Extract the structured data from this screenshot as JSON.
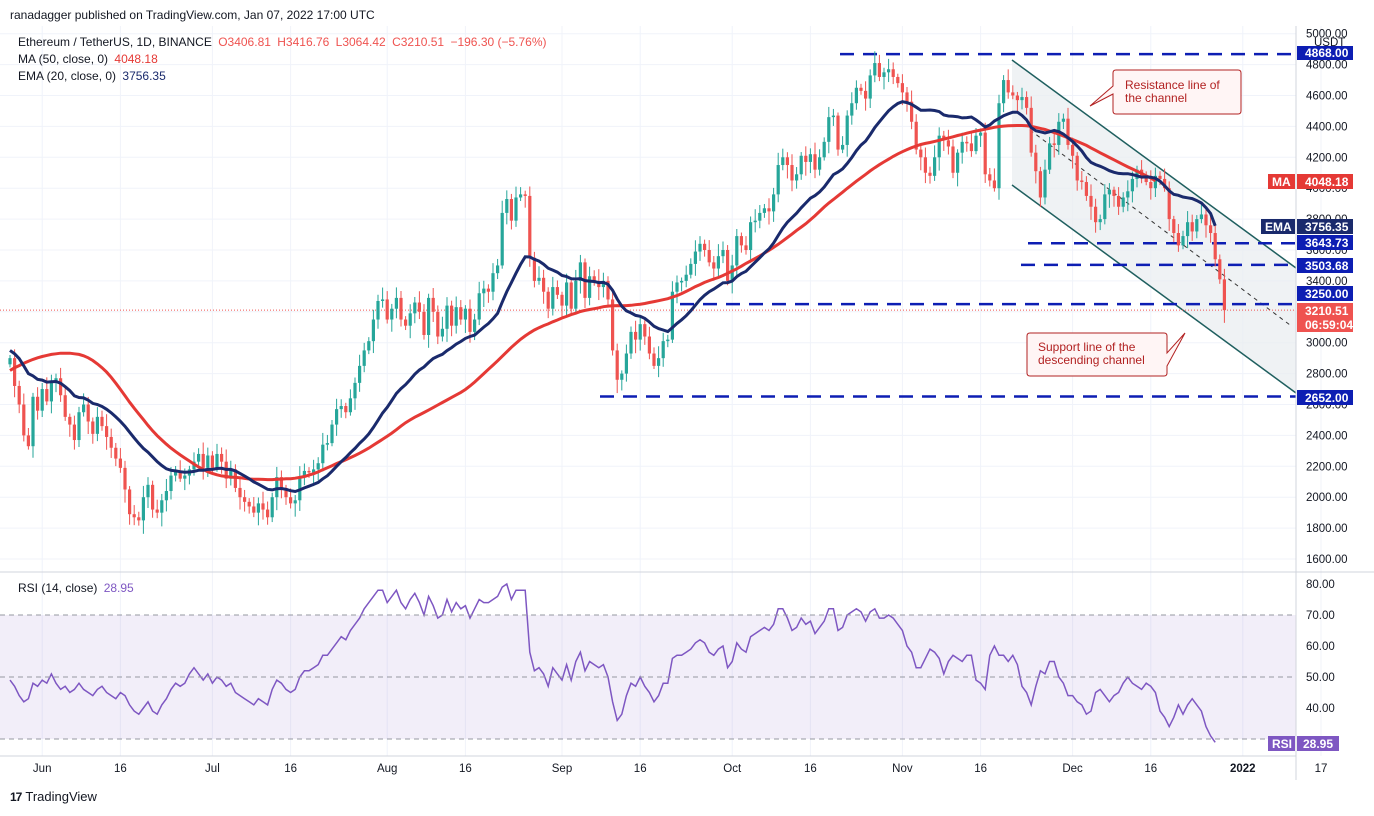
{
  "published": "ranadagger published on TradingView.com, Jan 07, 2022 17:00 UTC",
  "legend": {
    "symbol": "Ethereum / TetherUS, 1D, BINANCE",
    "ohlc": {
      "o": "O3406.81",
      "h": "H3416.76",
      "l": "L3064.42",
      "c": "C3210.51",
      "chg": "−196.30 (−5.76%)"
    },
    "ma_label": "MA (50, close, 0)",
    "ma_value": "4048.18",
    "ema_label": "EMA (20, close, 0)",
    "ema_value": "3756.35",
    "rsi_label": "RSI (14, close)",
    "rsi_value": "28.95"
  },
  "footer": {
    "brand": "TradingView"
  },
  "colors": {
    "up": "#26a69a",
    "down": "#ef5350",
    "ma": "#e53935",
    "ema": "#1a2a6c",
    "rsi": "#7e57c2",
    "level": "#0d1eb3",
    "channel": "#1f5f5f",
    "annotation": "#b22222"
  },
  "price_tags": {
    "currency": "USDT",
    "top": "4868.00",
    "ma": "4048.18",
    "ema": "3756.35",
    "lvl1": "3643.73",
    "lvl2": "3503.68",
    "lvl3": "3250.00",
    "last": "3210.51",
    "countdown": "06:59:04",
    "bottom": "2652.00",
    "ma_tag": "MA",
    "ema_tag": "EMA",
    "rsi_tag": "RSI"
  },
  "annotations": {
    "resistance_1": "Resistance line of",
    "resistance_2": "the channel",
    "support_1": "Support line of the",
    "support_2": "descending channel"
  },
  "chart_data": [
    {
      "type": "candlestick",
      "title": "Ethereum / TetherUS, 1D, BINANCE",
      "x_ticks": [
        "Jun",
        "16",
        "Jul",
        "16",
        "Aug",
        "16",
        "Sep",
        "16",
        "Oct",
        "16",
        "Nov",
        "16",
        "Dec",
        "16",
        "2022",
        "17"
      ],
      "y_ticks": [
        1600,
        1800,
        2000,
        2200,
        2400,
        2600,
        2800,
        3000,
        3200,
        3400,
        3600,
        3800,
        4000,
        4200,
        4400,
        4600,
        4800,
        5000
      ],
      "ylim": [
        1540,
        5040
      ],
      "ylabel": "USDT",
      "close": [
        2900,
        2720,
        2600,
        2400,
        2330,
        2650,
        2560,
        2700,
        2620,
        2740,
        2770,
        2660,
        2520,
        2470,
        2370,
        2550,
        2600,
        2490,
        2410,
        2520,
        2460,
        2390,
        2320,
        2250,
        2190,
        2050,
        1890,
        1870,
        1850,
        2000,
        2080,
        1920,
        1900,
        1980,
        2040,
        2140,
        2170,
        2120,
        2140,
        2180,
        2230,
        2280,
        2190,
        2270,
        2190,
        2280,
        2230,
        2120,
        2180,
        2060,
        2000,
        1970,
        1940,
        1900,
        1960,
        1920,
        1870,
        2000,
        2130,
        2060,
        2000,
        1960,
        1980,
        2130,
        2170,
        2160,
        2180,
        2220,
        2340,
        2350,
        2470,
        2570,
        2590,
        2550,
        2640,
        2740,
        2850,
        2950,
        3010,
        3150,
        3270,
        3280,
        3150,
        3220,
        3290,
        3150,
        3110,
        3190,
        3260,
        3200,
        3050,
        3290,
        3200,
        3040,
        3090,
        3240,
        3110,
        3230,
        3150,
        3220,
        3070,
        3150,
        3320,
        3350,
        3330,
        3450,
        3500,
        3840,
        3930,
        3790,
        3940,
        3960,
        3950,
        3550,
        3400,
        3420,
        3330,
        3220,
        3360,
        3310,
        3240,
        3390,
        3220,
        3400,
        3520,
        3290,
        3430,
        3400,
        3360,
        3400,
        3280,
        2950,
        2760,
        2800,
        2930,
        3070,
        3020,
        3120,
        3040,
        2930,
        2850,
        2900,
        3010,
        3020,
        3330,
        3390,
        3400,
        3440,
        3510,
        3590,
        3640,
        3600,
        3520,
        3480,
        3560,
        3600,
        3400,
        3500,
        3690,
        3630,
        3600,
        3780,
        3790,
        3840,
        3870,
        3850,
        3960,
        4150,
        4200,
        4150,
        4050,
        4090,
        4210,
        4170,
        4220,
        4120,
        4200,
        4300,
        4460,
        4470,
        4250,
        4280,
        4470,
        4550,
        4650,
        4630,
        4580,
        4730,
        4810,
        4720,
        4750,
        4770,
        4720,
        4680,
        4620,
        4560,
        4430,
        4250,
        4200,
        4100,
        4080,
        4200,
        4340,
        4310,
        4270,
        4100,
        4230,
        4300,
        4290,
        4240,
        4340,
        4360,
        4090,
        4050,
        4000,
        4550,
        4700,
        4620,
        4600,
        4570,
        4590,
        4520,
        4230,
        4110,
        3940,
        4120,
        4290,
        4280,
        4430,
        4450,
        4280,
        4210,
        4050,
        4040,
        3950,
        3880,
        3780,
        3800,
        3960,
        3990,
        3950,
        3880,
        3940,
        3980,
        4060,
        4120,
        4070,
        4040,
        4000,
        4080,
        4060,
        4000,
        3800,
        3710,
        3630,
        3690,
        3780,
        3720,
        3800,
        3830,
        3760,
        3710,
        3540,
        3410,
        3210.51
      ],
      "ma50": [
        2820,
        2838,
        2852,
        2867,
        2880,
        2892,
        2902,
        2911,
        2918,
        2924,
        2928,
        2932,
        2932,
        2932,
        2928,
        2924,
        2915,
        2902,
        2885,
        2863,
        2838,
        2810,
        2776,
        2738,
        2698,
        2656,
        2615,
        2576,
        2539,
        2502,
        2465,
        2430,
        2398,
        2370,
        2343,
        2318,
        2295,
        2274,
        2254,
        2234,
        2214,
        2196,
        2180,
        2165,
        2154,
        2145,
        2138,
        2134,
        2130,
        2128,
        2126,
        2122,
        2118,
        2116,
        2116,
        2115,
        2114,
        2114,
        2116,
        2117,
        2119,
        2120,
        2123,
        2128,
        2134,
        2143,
        2152,
        2164,
        2178,
        2191,
        2204,
        2218,
        2230,
        2242,
        2256,
        2270,
        2285,
        2301,
        2318,
        2337,
        2356,
        2375,
        2395,
        2415,
        2437,
        2460,
        2482,
        2500,
        2518,
        2533,
        2548,
        2564,
        2580,
        2597,
        2613,
        2629,
        2646,
        2662,
        2678,
        2697,
        2720,
        2745,
        2772,
        2800,
        2828,
        2855,
        2883,
        2912,
        2941,
        2970,
        2996,
        3022,
        3044,
        3064,
        3082,
        3097,
        3111,
        3122,
        3135,
        3147,
        3160,
        3170,
        3182,
        3191,
        3202,
        3209,
        3215,
        3220,
        3226,
        3233,
        3237,
        3239,
        3240,
        3239,
        3240,
        3242,
        3246,
        3249,
        3254,
        3260,
        3266,
        3272,
        3278,
        3285,
        3295,
        3305,
        3318,
        3332,
        3347,
        3363,
        3376,
        3390,
        3402,
        3412,
        3422,
        3435,
        3449,
        3464,
        3478,
        3495,
        3513,
        3529,
        3545,
        3562,
        3580,
        3598,
        3617,
        3637,
        3659,
        3681,
        3703,
        3727,
        3748,
        3770,
        3796,
        3822,
        3850,
        3878,
        3904,
        3927,
        3951,
        3974,
        3999,
        4022,
        4045,
        4067,
        4089,
        4112,
        4133,
        4152,
        4170,
        4188,
        4206,
        4222,
        4236,
        4250,
        4262,
        4273,
        4283,
        4290,
        4296,
        4303,
        4310,
        4318,
        4325,
        4333,
        4341,
        4348,
        4356,
        4363,
        4370,
        4376,
        4382,
        4388,
        4394,
        4399,
        4402,
        4404,
        4405,
        4406,
        4406,
        4404,
        4400,
        4394,
        4387,
        4380,
        4370,
        4360,
        4350,
        4338,
        4326,
        4315,
        4303,
        4290,
        4277,
        4261,
        4245,
        4229,
        4214,
        4199,
        4184,
        4168,
        4153,
        4138,
        4124,
        4110,
        4096,
        4080,
        4066,
        4048.18
      ],
      "ema20": [
        2950,
        2928,
        2897,
        2850,
        2800,
        2785,
        2763,
        2758,
        2745,
        2747,
        2749,
        2738,
        2715,
        2690,
        2656,
        2645,
        2643,
        2628,
        2607,
        2600,
        2587,
        2569,
        2546,
        2520,
        2491,
        2459,
        2421,
        2384,
        2348,
        2316,
        2291,
        2261,
        2230,
        2205,
        2184,
        2174,
        2170,
        2165,
        2162,
        2163,
        2167,
        2174,
        2175,
        2180,
        2180,
        2186,
        2187,
        2180,
        2180,
        2170,
        2154,
        2137,
        2119,
        2099,
        2084,
        2068,
        2051,
        2047,
        2055,
        2056,
        2051,
        2042,
        2037,
        2047,
        2060,
        2071,
        2083,
        2096,
        2119,
        2139,
        2168,
        2200,
        2230,
        2257,
        2288,
        2316,
        2349,
        2377,
        2410,
        2452,
        2498,
        2545,
        2582,
        2626,
        2672,
        2703,
        2729,
        2761,
        2796,
        2823,
        2843,
        2872,
        2898,
        2912,
        2925,
        2949,
        2968,
        2991,
        3008,
        3028,
        3040,
        3049,
        3075,
        3101,
        3124,
        3155,
        3190,
        3262,
        3331,
        3389,
        3450,
        3507,
        3556,
        3555,
        3540,
        3528,
        3508,
        3482,
        3470,
        3456,
        3435,
        3428,
        3414,
        3412,
        3415,
        3402,
        3399,
        3396,
        3389,
        3390,
        3378,
        3339,
        3283,
        3236,
        3206,
        3193,
        3177,
        3171,
        3157,
        3134,
        3107,
        3091,
        3082,
        3072,
        3098,
        3125,
        3148,
        3175,
        3207,
        3243,
        3279,
        3307,
        3330,
        3347,
        3367,
        3388,
        3389,
        3399,
        3427,
        3448,
        3462,
        3492,
        3521,
        3550,
        3581,
        3607,
        3645,
        3694,
        3741,
        3780,
        3809,
        3838,
        3873,
        3904,
        3935,
        3952,
        3976,
        4008,
        4048,
        4088,
        4104,
        4125,
        4160,
        4199,
        4243,
        4279,
        4305,
        4347,
        4393,
        4430,
        4466,
        4501,
        4527,
        4548,
        4560,
        4554,
        4543,
        4524,
        4505,
        4505,
        4506,
        4503,
        4496,
        4474,
        4467,
        4466,
        4463,
        4455,
        4457,
        4461,
        4442,
        4420,
        4396,
        4409,
        4435,
        4451,
        4469,
        4481,
        4492,
        4492,
        4471,
        4442,
        4393,
        4372,
        4365,
        4357,
        4365,
        4374,
        4366,
        4350,
        4326,
        4302,
        4273,
        4241,
        4198,
        4167,
        4153,
        4142,
        4129,
        4113,
        4103,
        4096,
        4094,
        4094,
        4088,
        4080,
        4072,
        4073,
        4071,
        4064,
        4045,
        4016,
        3983,
        3960,
        3954,
        3943,
        3938,
        3933,
        3920,
        3904,
        3874,
        3836,
        3756.35
      ]
    },
    {
      "type": "line",
      "title": "RSI (14, close)",
      "y_ticks": [
        40,
        50,
        60,
        70,
        80
      ],
      "ylim": [
        29,
        83
      ],
      "bands": [
        30,
        70
      ],
      "values": [
        49,
        47,
        44,
        42,
        43,
        48,
        47,
        49,
        48,
        51,
        48,
        46,
        47,
        45,
        46,
        48,
        46,
        45,
        44,
        46,
        47,
        45,
        44,
        43,
        45,
        44,
        41,
        39,
        38,
        40,
        42,
        39,
        38,
        41,
        43,
        46,
        48,
        47,
        48,
        51,
        53,
        51,
        49,
        51,
        48,
        50,
        49,
        47,
        48,
        45,
        44,
        43,
        42,
        41,
        43,
        42,
        41,
        46,
        49,
        48,
        46,
        45,
        46,
        50,
        52,
        52,
        53,
        54,
        57,
        57,
        59,
        61,
        63,
        62,
        65,
        67,
        69,
        72,
        74,
        76,
        78,
        78,
        74,
        76,
        78,
        74,
        72,
        75,
        77,
        74,
        70,
        76,
        73,
        69,
        70,
        75,
        71,
        74,
        72,
        73,
        69,
        72,
        75,
        74,
        74,
        75,
        76,
        79,
        80,
        75,
        78,
        78,
        78,
        58,
        52,
        53,
        51,
        47,
        53,
        51,
        49,
        54,
        49,
        55,
        58,
        52,
        55,
        54,
        53,
        54,
        50,
        42,
        36,
        38,
        44,
        48,
        47,
        50,
        47,
        45,
        42,
        44,
        48,
        48,
        56,
        57,
        57,
        58,
        59,
        61,
        62,
        61,
        58,
        57,
        59,
        60,
        53,
        55,
        61,
        59,
        58,
        63,
        64,
        65,
        66,
        65,
        67,
        72,
        72,
        69,
        65,
        66,
        69,
        67,
        68,
        64,
        66,
        68,
        72,
        72,
        65,
        66,
        70,
        71,
        72,
        71,
        68,
        71,
        72,
        69,
        69,
        70,
        69,
        67,
        65,
        60,
        58,
        53,
        53,
        56,
        59,
        58,
        56,
        51,
        55,
        57,
        56,
        55,
        57,
        57,
        49,
        48,
        46,
        57,
        60,
        57,
        57,
        55,
        57,
        54,
        47,
        45,
        41,
        47,
        52,
        51,
        55,
        55,
        50,
        48,
        44,
        44,
        42,
        41,
        38,
        39,
        45,
        46,
        44,
        42,
        44,
        45,
        48,
        50,
        48,
        47,
        46,
        48,
        47,
        45,
        39,
        37,
        34,
        37,
        41,
        38,
        41,
        43,
        41,
        39,
        34,
        31,
        28.95
      ]
    }
  ]
}
